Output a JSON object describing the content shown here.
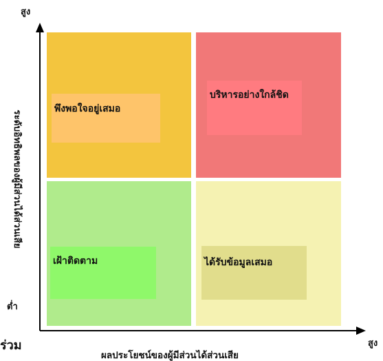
{
  "colors": {
    "top_left": "#f3c53e",
    "top_right": "#f17878",
    "bottom_left": "#b0eb8c",
    "bottom_right": "#f5f2b2",
    "top_left_label_bg": "#fec46a",
    "top_right_label_bg": "#ff7b80",
    "bottom_left_label_bg": "#8ff86a",
    "bottom_right_label_bg": "#e1dd8c",
    "axis": "#000000"
  },
  "quadrants": {
    "top_left": {
      "label": "พึงพอใจอยู่เสมอ"
    },
    "top_right": {
      "label": "บริหารอย่างใกล้ชิด"
    },
    "bottom_left": {
      "label": "เฝ้าติดตาม"
    },
    "bottom_right": {
      "label": "ได้รับข้อมูลเสมอ"
    }
  },
  "y_axis": {
    "high": "สูง",
    "low": "ต่ำ",
    "title": "ระดับอิทธิพลของผู้มีส่วนได้ส่วนเสีย"
  },
  "x_axis": {
    "high": "สูง",
    "title": "ผลประโยชน์ของผู้มีส่วนได้ส่วนเสีย"
  },
  "cropped_text": "ร่วม"
}
